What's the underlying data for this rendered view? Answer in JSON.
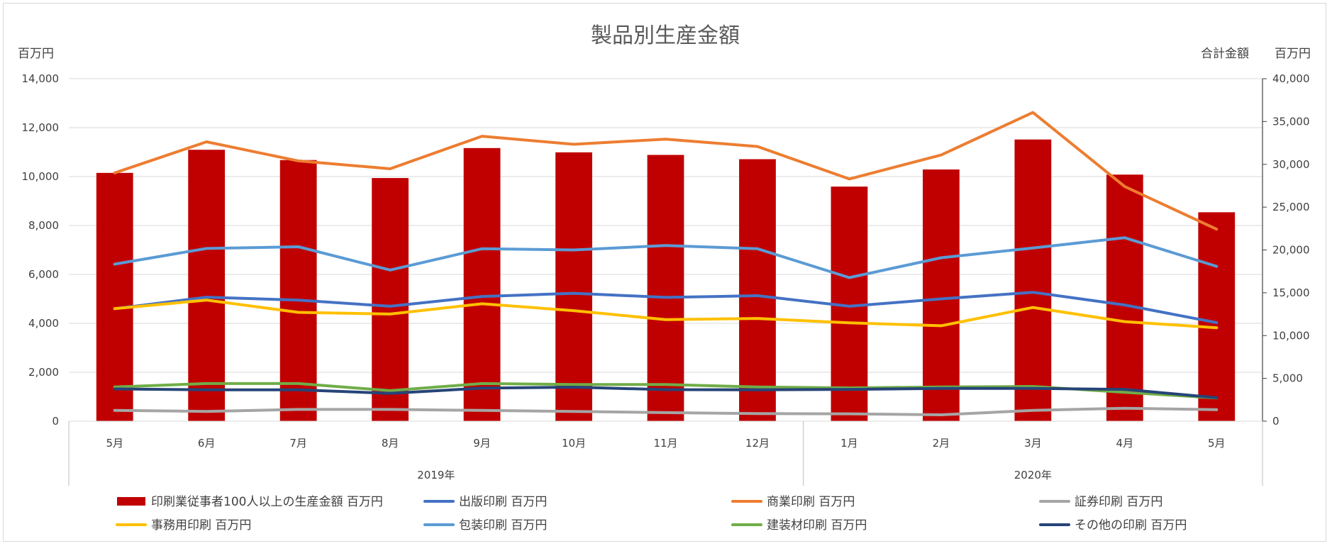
{
  "chart_data": {
    "type": "bar+line",
    "title": "製品別生産金額",
    "y_left_unit": "百万円",
    "y_right_label": "合計金額",
    "y_right_unit": "百万円",
    "y_left": {
      "min": 0,
      "max": 14000,
      "step": 2000,
      "ticks": [
        "0",
        "2,000",
        "4,000",
        "6,000",
        "8,000",
        "10,000",
        "12,000",
        "14,000"
      ]
    },
    "y_right": {
      "min": 0,
      "max": 40000,
      "step": 5000,
      "ticks": [
        "0",
        "5,000",
        "10,000",
        "15,000",
        "20,000",
        "25,000",
        "30,000",
        "35,000",
        "40,000"
      ]
    },
    "categories": [
      "5月",
      "6月",
      "7月",
      "8月",
      "9月",
      "10月",
      "11月",
      "12月",
      "1月",
      "2月",
      "3月",
      "4月",
      "5月"
    ],
    "year_groups": [
      {
        "label": "2019年",
        "count": 8
      },
      {
        "label": "2020年",
        "count": 5
      }
    ],
    "grid": true,
    "legend_position": "bottom",
    "bar_series": {
      "name": "印刷業従事者100人以上の生産金額 百万円",
      "axis": "right",
      "color": "#c00000",
      "values": [
        29000,
        31700,
        30500,
        28400,
        31900,
        31400,
        31100,
        30600,
        27400,
        29400,
        32900,
        28800,
        24400
      ]
    },
    "line_series": [
      {
        "name": "出版印刷 百万円",
        "color": "#4472c4",
        "values": [
          4600,
          5070,
          4950,
          4700,
          5100,
          5230,
          5060,
          5130,
          4700,
          5000,
          5270,
          4750,
          4030
        ]
      },
      {
        "name": "商業印刷 百万円",
        "color": "#ed7d31",
        "values": [
          10150,
          11420,
          10640,
          10320,
          11650,
          11320,
          11530,
          11230,
          9900,
          10880,
          12620,
          9590,
          7850
        ]
      },
      {
        "name": "証券印刷 百万円",
        "color": "#a5a5a5",
        "values": [
          440,
          400,
          480,
          480,
          440,
          400,
          350,
          310,
          300,
          260,
          440,
          530,
          470
        ]
      },
      {
        "name": "事務用印刷 百万円",
        "color": "#ffc000",
        "values": [
          4600,
          4950,
          4450,
          4380,
          4800,
          4520,
          4150,
          4200,
          4020,
          3900,
          4650,
          4070,
          3820
        ]
      },
      {
        "name": "包装印刷 百万円",
        "color": "#5b9bd5",
        "values": [
          6420,
          7060,
          7130,
          6180,
          7050,
          7000,
          7180,
          7050,
          5870,
          6680,
          7080,
          7500,
          6330
        ]
      },
      {
        "name": "建装材印刷 百万円",
        "color": "#70ad47",
        "values": [
          1400,
          1540,
          1540,
          1250,
          1540,
          1500,
          1500,
          1400,
          1360,
          1400,
          1420,
          1180,
          950
        ]
      },
      {
        "name": "その他の印刷 百万円",
        "color": "#264478",
        "values": [
          1320,
          1280,
          1280,
          1140,
          1350,
          1390,
          1290,
          1280,
          1300,
          1340,
          1340,
          1300,
          960
        ]
      }
    ]
  }
}
